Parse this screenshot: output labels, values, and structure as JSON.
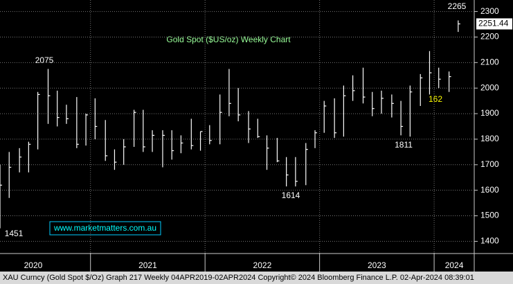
{
  "chart_data": {
    "type": "ohlc",
    "title": "Gold Spot ($US/oz) Weekly Chart",
    "watermark": "www.marketmatters.com.au",
    "footer": "XAU Curncy (Gold Spot  $/Oz) Graph 217  Weekly 04APR2019-02APR2024  Copyright© 2024 Bloomberg Finance L.P.  02-Apr-2024 08:39:01",
    "annotations": [
      "2075",
      "2265",
      "1451",
      "1614",
      "1811",
      "162"
    ],
    "color": "#ffffff",
    "x": [
      2020.21,
      2020.29,
      2020.38,
      2020.46,
      2020.54,
      2020.63,
      2020.71,
      2020.79,
      2020.88,
      2020.96,
      2021.04,
      2021.13,
      2021.21,
      2021.29,
      2021.38,
      2021.46,
      2021.54,
      2021.63,
      2021.71,
      2021.79,
      2021.88,
      2021.96,
      2022.04,
      2022.13,
      2022.21,
      2022.29,
      2022.38,
      2022.46,
      2022.54,
      2022.63,
      2022.71,
      2022.79,
      2022.88,
      2022.96,
      2023.04,
      2023.13,
      2023.21,
      2023.29,
      2023.38,
      2023.46,
      2023.54,
      2023.63,
      2023.71,
      2023.79,
      2023.88,
      2023.96,
      2024.04,
      2024.13,
      2024.21
    ],
    "low": [
      1451,
      1570,
      1670,
      1670,
      1760,
      1860,
      1850,
      1860,
      1765,
      1775,
      1800,
      1715,
      1680,
      1700,
      1770,
      1750,
      1750,
      1690,
      1720,
      1745,
      1760,
      1755,
      1780,
      1780,
      1890,
      1870,
      1785,
      1805,
      1680,
      1710,
      1615,
      1615,
      1620,
      1765,
      1825,
      1805,
      1810,
      1950,
      1940,
      1890,
      1900,
      1885,
      1815,
      1810,
      1930,
      1975,
      2000,
      1985,
      2220
    ],
    "high": [
      1700,
      1750,
      1765,
      1790,
      1985,
      2075,
      1990,
      1935,
      1965,
      1900,
      1960,
      1875,
      1760,
      1800,
      1915,
      1915,
      1835,
      1835,
      1835,
      1815,
      1880,
      1830,
      1855,
      1975,
      2075,
      2000,
      1910,
      1880,
      1815,
      1805,
      1730,
      1730,
      1785,
      1835,
      1950,
      1960,
      2010,
      2050,
      2080,
      1985,
      1990,
      1975,
      1950,
      2010,
      2055,
      2145,
      2080,
      2065,
      2265
    ],
    "close": [
      1620,
      1690,
      1730,
      1780,
      1975,
      1970,
      1885,
      1880,
      1780,
      1895,
      1850,
      1735,
      1710,
      1770,
      1905,
      1770,
      1815,
      1815,
      1755,
      1785,
      1775,
      1830,
      1795,
      1905,
      1940,
      1895,
      1840,
      1810,
      1765,
      1715,
      1660,
      1635,
      1760,
      1825,
      1930,
      1825,
      1970,
      1990,
      1965,
      1920,
      1960,
      1940,
      1850,
      1985,
      2040,
      2060,
      2035,
      2045,
      2251.44
    ],
    "xlim": [
      2020.21,
      2024.35
    ],
    "xticks": [
      {
        "value": 2020,
        "label": "2020"
      },
      {
        "value": 2021,
        "label": "2021"
      },
      {
        "value": 2022,
        "label": "2022"
      },
      {
        "value": 2023,
        "label": "2023"
      },
      {
        "value": 2024,
        "label": "2024"
      }
    ],
    "ylim": [
      1355,
      2345
    ],
    "yticks": [
      1400,
      1500,
      1600,
      1700,
      1800,
      1900,
      2000,
      2100,
      2200,
      2300
    ],
    "grid": true
  }
}
